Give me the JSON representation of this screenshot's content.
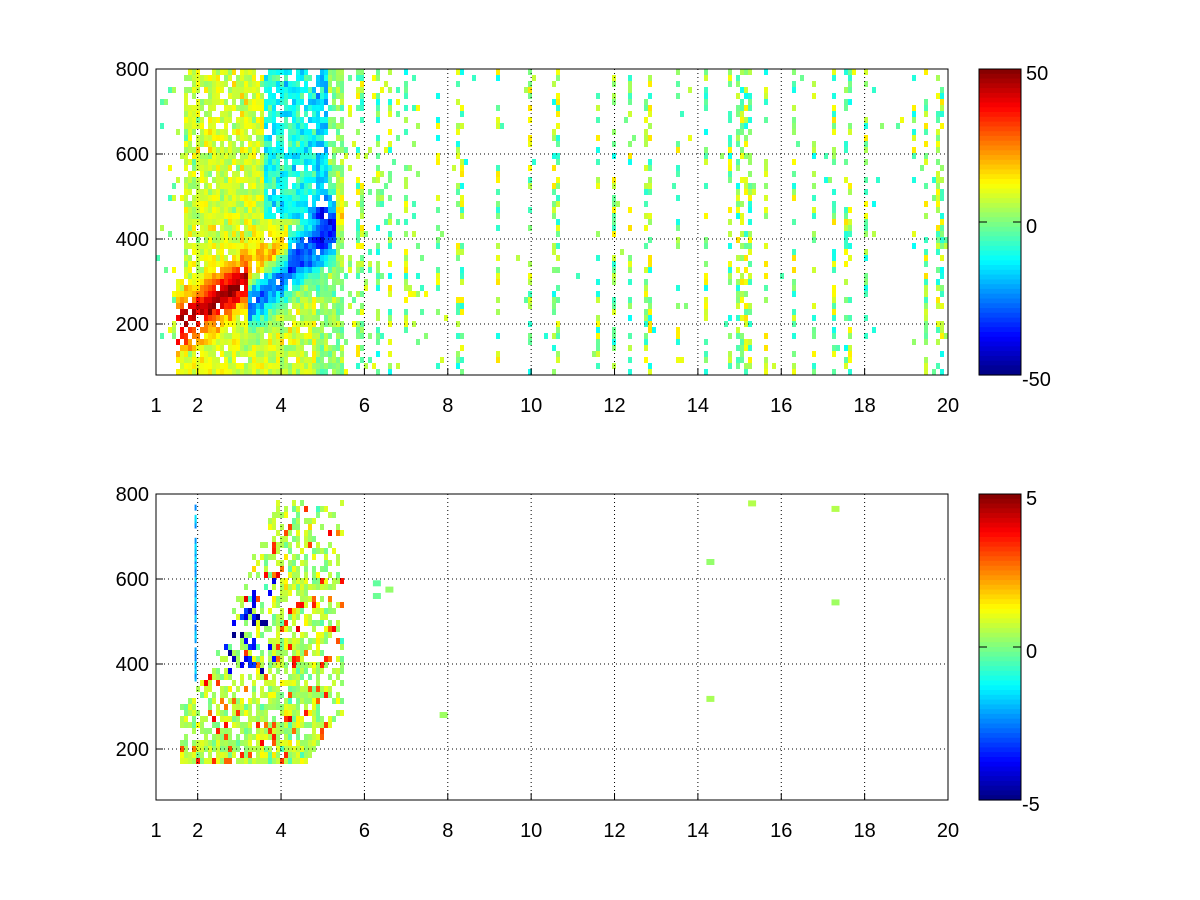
{
  "chart_data": [
    {
      "type": "heatmap",
      "xlim": [
        1,
        20
      ],
      "ylim": [
        80,
        800
      ],
      "x_ticks": [
        "1",
        "2",
        "4",
        "6",
        "8",
        "10",
        "12",
        "14",
        "16",
        "18",
        "20"
      ],
      "y_ticks": [
        "200",
        "400",
        "600",
        "800"
      ],
      "grid": true,
      "grid_style": "dotted",
      "colormap": "jet",
      "colorbar": {
        "min": -50,
        "max": 50,
        "ticks": [
          "50",
          "0",
          "-50"
        ]
      },
      "value_field": {
        "dense_core": {
          "x_range": [
            1.5,
            5.5
          ],
          "y_range": [
            150,
            800
          ]
        },
        "positive_band": {
          "x_range": [
            1.8,
            4.2
          ],
          "y_range": [
            200,
            420
          ],
          "peak_value": 50
        },
        "negative_band": {
          "x_range": [
            3.3,
            5.2
          ],
          "y_range": [
            240,
            460
          ],
          "peak_value": -40
        },
        "sparse_columns_x": [
          5.9,
          6.3,
          6.6,
          7.0,
          7.8,
          8.3,
          9.2,
          10.0,
          10.6,
          11.6,
          12.0,
          12.4,
          12.8,
          13.5,
          14.2,
          14.8,
          15.0,
          15.2,
          15.6,
          16.3,
          16.8,
          17.3,
          17.6,
          18.0,
          19.2,
          19.5,
          19.8
        ],
        "sparse_value_range": [
          -15,
          15
        ]
      }
    },
    {
      "type": "heatmap",
      "xlim": [
        1,
        20
      ],
      "ylim": [
        80,
        800
      ],
      "x_ticks": [
        "1",
        "2",
        "4",
        "6",
        "8",
        "10",
        "12",
        "14",
        "16",
        "18",
        "20"
      ],
      "y_ticks": [
        "200",
        "400",
        "600",
        "800"
      ],
      "grid": true,
      "grid_style": "dotted",
      "colormap": "jet",
      "colorbar": {
        "min": -5,
        "max": 5,
        "ticks": [
          "5",
          "0",
          "-5"
        ]
      },
      "value_field": {
        "dense_core": {
          "x_range": [
            1.6,
            5.5
          ],
          "y_range": [
            160,
            790
          ]
        },
        "negative_patch": {
          "x_range": [
            2.3,
            3.9
          ],
          "y_range": [
            380,
            600
          ],
          "peak_value": -5
        },
        "positive_speckle_value": 3,
        "isolated_points": [
          {
            "x": 15.3,
            "y": 778,
            "value": 0.5
          },
          {
            "x": 17.3,
            "y": 765,
            "value": 0.5
          },
          {
            "x": 17.3,
            "y": 545,
            "value": 0.3
          },
          {
            "x": 14.3,
            "y": 640,
            "value": 0.2
          },
          {
            "x": 14.3,
            "y": 318,
            "value": 0.4
          },
          {
            "x": 7.9,
            "y": 280,
            "value": 0.3
          },
          {
            "x": 6.3,
            "y": 590,
            "value": -0.3
          },
          {
            "x": 6.6,
            "y": 575,
            "value": 0.2
          },
          {
            "x": 6.3,
            "y": 560,
            "value": -0.2
          }
        ]
      }
    }
  ]
}
